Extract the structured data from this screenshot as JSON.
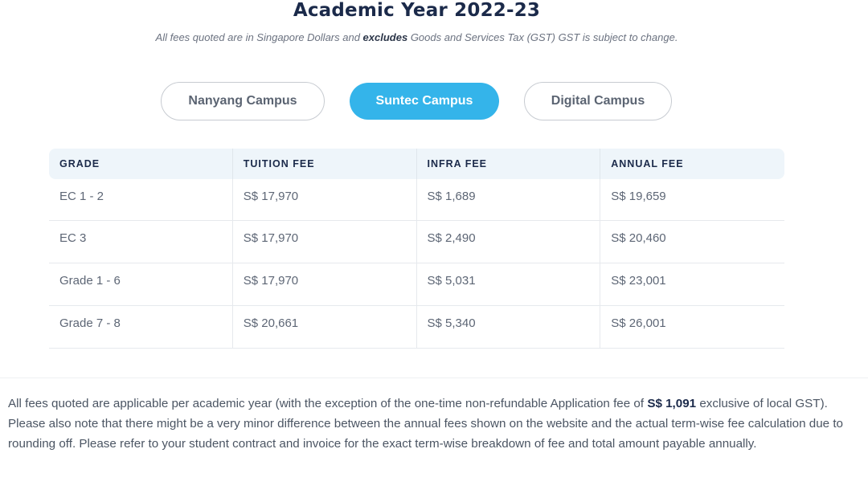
{
  "header": {
    "title": "Academic Year 2022-23",
    "subtitle_pre": "All fees quoted are in Singapore Dollars and ",
    "subtitle_bold": "excludes",
    "subtitle_post": " Goods and Services Tax (GST) GST is subject to change."
  },
  "tabs": [
    {
      "label": "Nanyang Campus",
      "active": false
    },
    {
      "label": "Suntec Campus",
      "active": true
    },
    {
      "label": "Digital Campus",
      "active": false
    }
  ],
  "table": {
    "headers": [
      "GRADE",
      "TUITION FEE",
      "INFRA FEE",
      "ANNUAL FEE"
    ],
    "rows": [
      [
        "EC 1 - 2",
        "S$ 17,970",
        "S$ 1,689",
        "S$ 19,659"
      ],
      [
        "EC 3",
        "S$ 17,970",
        "S$ 2,490",
        "S$ 20,460"
      ],
      [
        "Grade 1 - 6",
        "S$ 17,970",
        "S$ 5,031",
        "S$ 23,001"
      ],
      [
        "Grade 7 - 8",
        "S$ 20,661",
        "S$ 5,340",
        "S$ 26,001"
      ]
    ]
  },
  "notes": {
    "p1_pre": "All fees quoted are applicable per academic year (with the exception of the one-time non-refundable Application fee of ",
    "p1_bold": "S$ 1,091",
    "p1_post": " exclusive of local GST).",
    "p2": "Please also note that there might be a very minor difference between the annual fees shown on the website and the actual term-wise fee calculation due to rounding off. Please refer to your student contract and invoice for the exact term-wise breakdown of fee and total amount payable annually."
  },
  "colors": {
    "accent": "#34b4ea",
    "heading": "#1b2a4a",
    "header_bg": "#eef5fa"
  }
}
